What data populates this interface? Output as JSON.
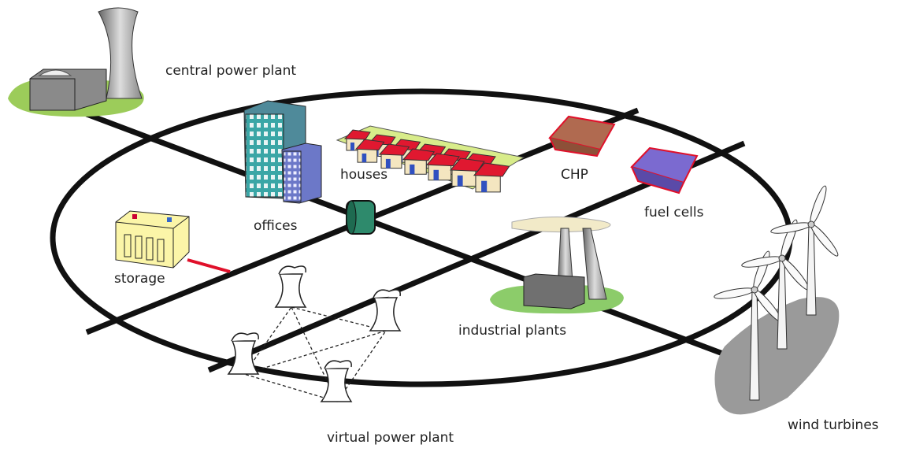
{
  "nodes": [
    {
      "label": "central power plant"
    },
    {
      "label": "offices"
    },
    {
      "label": "houses"
    },
    {
      "label": "CHP"
    },
    {
      "label": "fuel cells"
    },
    {
      "label": "storage"
    },
    {
      "label": "industrial plants"
    },
    {
      "label": "wind turbines"
    },
    {
      "label": "virtual power plant"
    }
  ]
}
